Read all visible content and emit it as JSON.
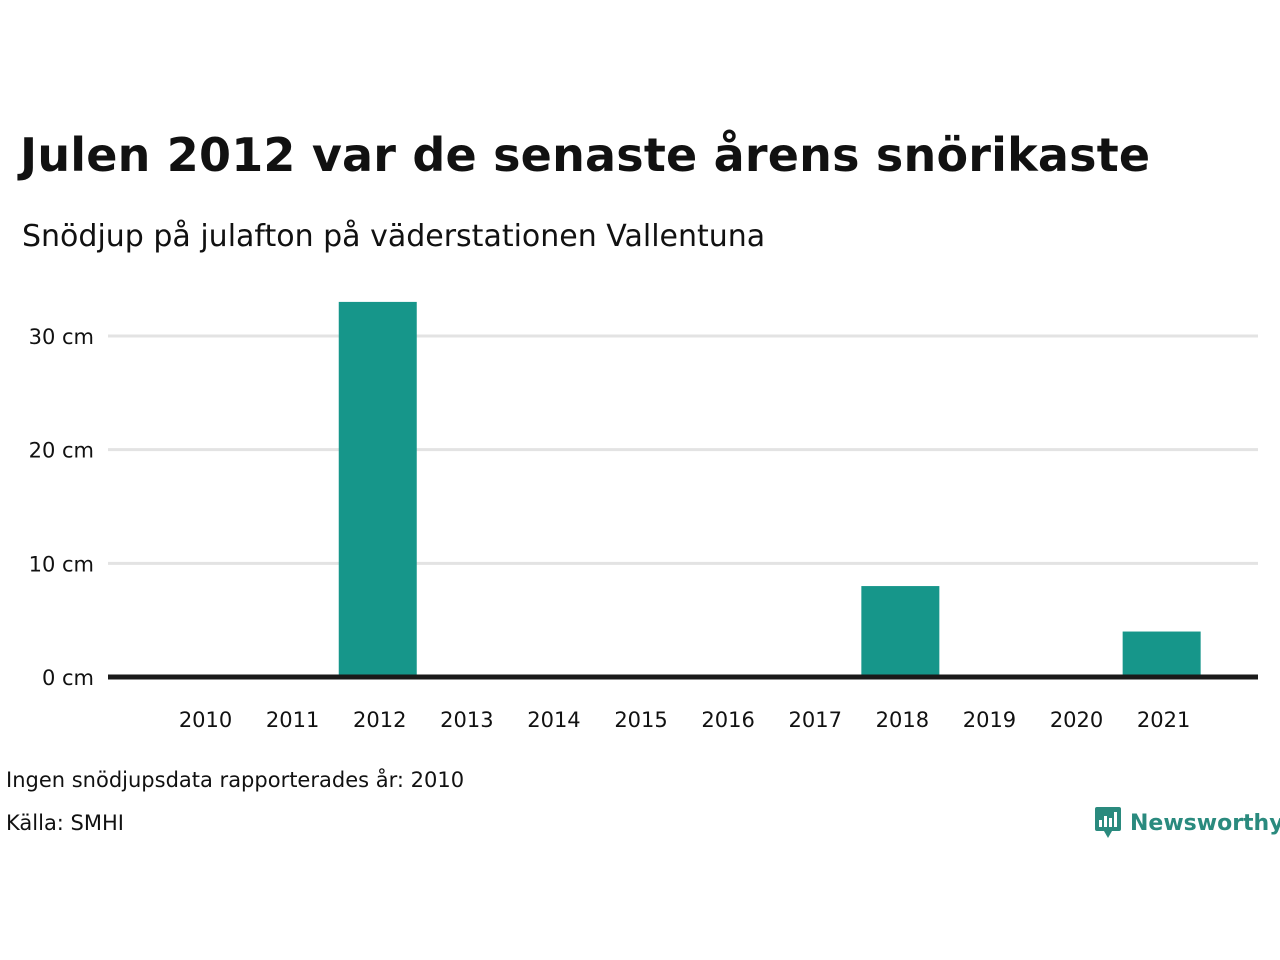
{
  "header": {
    "title": "Julen 2012 var de senaste årens snörikaste",
    "subtitle": "Snödjup på julafton på väderstationen Vallentuna"
  },
  "footer": {
    "note": "Ingen snödjupsdata rapporterades år: 2010",
    "source": "Källa: SMHI",
    "brand": "Newsworthy",
    "brand_icon": "bar-chart-speech-bubble-icon"
  },
  "colors": {
    "bar": "#16968a",
    "grid": "#e3e3e3",
    "baseline": "#1a1a1a",
    "brand": "#2a8a7e",
    "text": "#111111"
  },
  "chart_data": {
    "type": "bar",
    "title": "Julen 2012 var de senaste årens snörikaste",
    "subtitle": "Snödjup på julafton på väderstationen Vallentuna",
    "categories": [
      "2010",
      "2011",
      "2012",
      "2013",
      "2014",
      "2015",
      "2016",
      "2017",
      "2018",
      "2019",
      "2020",
      "2021"
    ],
    "values": [
      null,
      0,
      33,
      0,
      0,
      0,
      0,
      0,
      8,
      0,
      0,
      4
    ],
    "unit": "cm",
    "y_ticks": [
      0,
      10,
      20,
      30
    ],
    "y_tick_labels": [
      "0 cm",
      "10 cm",
      "20 cm",
      "30 cm"
    ],
    "ylim": [
      0,
      33
    ],
    "grid": true,
    "legend": "none"
  }
}
